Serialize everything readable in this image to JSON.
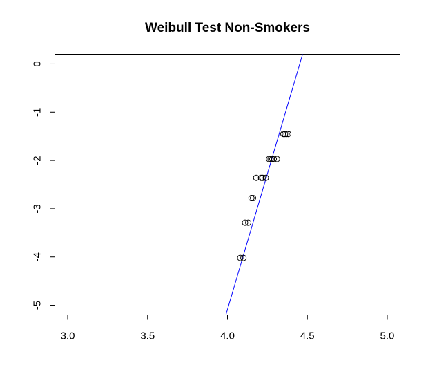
{
  "chart_data": {
    "type": "scatter",
    "title": "Weibull Test Non-Smokers",
    "xlabel": "",
    "ylabel": "",
    "xlim": [
      2.92,
      5.08
    ],
    "ylim": [
      -5.2,
      0.2
    ],
    "x_ticks": [
      3.0,
      3.5,
      4.0,
      4.5,
      5.0
    ],
    "x_tick_labels": [
      "3.0",
      "3.5",
      "4.0",
      "4.5",
      "5.0"
    ],
    "y_ticks": [
      0,
      -1,
      -2,
      -3,
      -4,
      -5
    ],
    "y_tick_labels": [
      "0",
      "-1",
      "-2",
      "-3",
      "-4",
      "-5"
    ],
    "grid": false,
    "points": [
      {
        "x": 4.08,
        "y": -4.02
      },
      {
        "x": 4.1,
        "y": -4.02
      },
      {
        "x": 4.11,
        "y": -3.29
      },
      {
        "x": 4.13,
        "y": -3.29
      },
      {
        "x": 4.15,
        "y": -2.78
      },
      {
        "x": 4.16,
        "y": -2.78
      },
      {
        "x": 4.18,
        "y": -2.36
      },
      {
        "x": 4.21,
        "y": -2.36
      },
      {
        "x": 4.22,
        "y": -2.36
      },
      {
        "x": 4.24,
        "y": -2.36
      },
      {
        "x": 4.26,
        "y": -1.97
      },
      {
        "x": 4.27,
        "y": -1.97
      },
      {
        "x": 4.28,
        "y": -1.97
      },
      {
        "x": 4.29,
        "y": -1.97
      },
      {
        "x": 4.31,
        "y": -1.97
      },
      {
        "x": 4.35,
        "y": -1.45
      },
      {
        "x": 4.36,
        "y": -1.45
      },
      {
        "x": 4.37,
        "y": -1.45
      },
      {
        "x": 4.38,
        "y": -1.45
      }
    ],
    "reference_line": {
      "color": "#0000ff",
      "from": {
        "x": 3.99,
        "y": -5.2
      },
      "to": {
        "x": 4.47,
        "y": 0.2
      }
    },
    "colors": {
      "points": "#000000",
      "line": "#0000ff"
    }
  }
}
